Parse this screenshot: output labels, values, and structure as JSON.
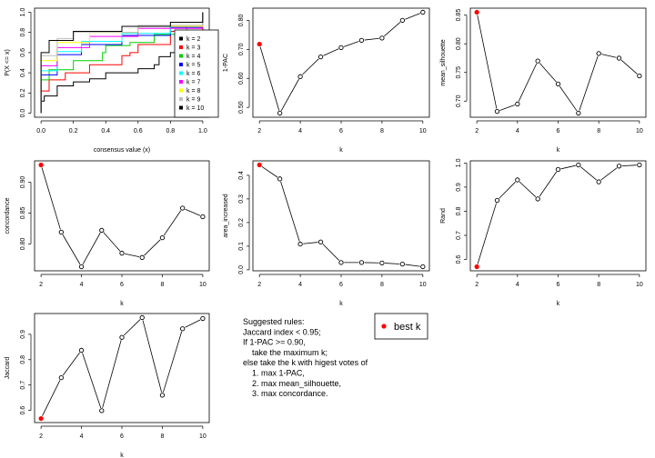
{
  "colors": {
    "best": "#ff0000",
    "line": "#000000"
  },
  "chart_data": [
    {
      "type": "line",
      "id": "ecdf",
      "xlabel": "consensus value (x)",
      "ylabel": "P(X <= x)",
      "xlim": [
        0,
        1
      ],
      "ylim": [
        0,
        1
      ],
      "xticks": [
        "0.0",
        "0.2",
        "0.4",
        "0.6",
        "0.8",
        "1.0"
      ],
      "yticks": [
        "0.0",
        "0.2",
        "0.4",
        "0.6",
        "0.8",
        "1.0"
      ],
      "legend_position": "right",
      "series": [
        {
          "name": "k = 2",
          "color": "#000000",
          "x": [
            0,
            0,
            0.02,
            0.1,
            0.2,
            0.3,
            0.4,
            0.6,
            0.7,
            0.73,
            0.8,
            0.99,
            1
          ],
          "y": [
            0,
            0.12,
            0.17,
            0.27,
            0.31,
            0.34,
            0.4,
            0.44,
            0.48,
            0.56,
            0.6,
            0.62,
            1
          ]
        },
        {
          "name": "k = 3",
          "color": "#ff0000",
          "x": [
            0,
            0,
            0.05,
            0.15,
            0.3,
            0.5,
            0.55,
            0.6,
            0.8,
            1,
            1
          ],
          "y": [
            0,
            0.22,
            0.33,
            0.4,
            0.48,
            0.57,
            0.6,
            0.68,
            0.81,
            0.97,
            1
          ]
        },
        {
          "name": "k = 4",
          "color": "#00cd00",
          "x": [
            0,
            0,
            0.05,
            0.2,
            0.38,
            0.4,
            0.55,
            0.7,
            0.9,
            1,
            1
          ],
          "y": [
            0,
            0.33,
            0.43,
            0.52,
            0.6,
            0.67,
            0.7,
            0.78,
            0.86,
            0.96,
            1
          ]
        },
        {
          "name": "k = 5",
          "color": "#0000ff",
          "x": [
            0,
            0,
            0.1,
            0.25,
            0.5,
            0.8,
            1,
            1
          ],
          "y": [
            0,
            0.38,
            0.58,
            0.68,
            0.77,
            0.85,
            0.97,
            1
          ]
        },
        {
          "name": "k = 6",
          "color": "#00ffff",
          "x": [
            0,
            0,
            0.1,
            0.25,
            0.5,
            0.8,
            1,
            1
          ],
          "y": [
            0,
            0.42,
            0.61,
            0.71,
            0.79,
            0.86,
            0.97,
            1
          ]
        },
        {
          "name": "k = 7",
          "color": "#ff00ff",
          "x": [
            0,
            0,
            0.1,
            0.3,
            0.6,
            1,
            1
          ],
          "y": [
            0,
            0.47,
            0.65,
            0.76,
            0.84,
            0.98,
            1
          ]
        },
        {
          "name": "k = 8",
          "color": "#ffff00",
          "x": [
            0,
            0,
            0.1,
            0.3,
            0.6,
            1,
            1
          ],
          "y": [
            0,
            0.52,
            0.7,
            0.8,
            0.86,
            0.98,
            1
          ]
        },
        {
          "name": "k = 9",
          "color": "#bebebe",
          "x": [
            0,
            0,
            0.1,
            0.2,
            0.6,
            1,
            1
          ],
          "y": [
            0,
            0.57,
            0.74,
            0.8,
            0.87,
            0.99,
            1
          ]
        },
        {
          "name": "k = 10",
          "color": "#000000",
          "x": [
            0,
            0,
            0.05,
            0.2,
            0.5,
            0.8,
            1
          ],
          "y": [
            0,
            0.6,
            0.72,
            0.81,
            0.86,
            0.9,
            1
          ]
        }
      ]
    },
    {
      "type": "line",
      "id": "pac",
      "xlabel": "k",
      "ylabel": "1-PAC",
      "x": [
        2,
        3,
        4,
        5,
        6,
        7,
        8,
        9,
        10
      ],
      "values": [
        0.718,
        0.48,
        0.606,
        0.674,
        0.706,
        0.731,
        0.739,
        0.8,
        0.828
      ],
      "best_k": 2,
      "xticks": [
        "2",
        "4",
        "6",
        "8",
        "10"
      ],
      "yticks": [
        "0.50",
        "0.60",
        "0.70",
        "0.80"
      ]
    },
    {
      "type": "line",
      "id": "silhouette",
      "xlabel": "k",
      "ylabel": "mean_silhouette",
      "x": [
        2,
        3,
        4,
        5,
        6,
        7,
        8,
        9,
        10
      ],
      "values": [
        0.855,
        0.682,
        0.695,
        0.77,
        0.73,
        0.679,
        0.783,
        0.775,
        0.744
      ],
      "best_k": 2,
      "xticks": [
        "2",
        "4",
        "6",
        "8",
        "10"
      ],
      "yticks": [
        "0.70",
        "0.75",
        "0.80",
        "0.85"
      ]
    },
    {
      "type": "line",
      "id": "concordance",
      "xlabel": "k",
      "ylabel": "concordance",
      "x": [
        2,
        3,
        4,
        5,
        6,
        7,
        8,
        9,
        10
      ],
      "values": [
        0.928,
        0.819,
        0.763,
        0.822,
        0.785,
        0.778,
        0.81,
        0.858,
        0.844
      ],
      "best_k": 2,
      "xticks": [
        "2",
        "4",
        "6",
        "8",
        "10"
      ],
      "yticks": [
        "0.80",
        "0.85",
        "0.90"
      ]
    },
    {
      "type": "line",
      "id": "area",
      "xlabel": "k",
      "ylabel": "area_increased",
      "x": [
        2,
        3,
        4,
        5,
        6,
        7,
        8,
        9,
        10
      ],
      "values": [
        0.444,
        0.385,
        0.109,
        0.118,
        0.031,
        0.031,
        0.029,
        0.024,
        0.013
      ],
      "best_k": 2,
      "xticks": [
        "2",
        "4",
        "6",
        "8",
        "10"
      ],
      "yticks": [
        "0.0",
        "0.1",
        "0.2",
        "0.3",
        "0.4"
      ]
    },
    {
      "type": "line",
      "id": "rand",
      "xlabel": "k",
      "ylabel": "Rand",
      "x": [
        2,
        3,
        4,
        5,
        6,
        7,
        8,
        9,
        10
      ],
      "values": [
        0.57,
        0.845,
        0.93,
        0.851,
        0.973,
        0.992,
        0.922,
        0.987,
        0.992
      ],
      "best_k": 2,
      "xticks": [
        "2",
        "4",
        "6",
        "8",
        "10"
      ],
      "yticks": [
        "0.6",
        "0.7",
        "0.8",
        "0.9",
        "1.0"
      ]
    },
    {
      "type": "line",
      "id": "jaccard",
      "xlabel": "k",
      "ylabel": "Jaccard",
      "x": [
        2,
        3,
        4,
        5,
        6,
        7,
        8,
        9,
        10
      ],
      "values": [
        0.568,
        0.729,
        0.837,
        0.599,
        0.888,
        0.966,
        0.66,
        0.922,
        0.962
      ],
      "best_k": 2,
      "xticks": [
        "2",
        "4",
        "6",
        "8",
        "10"
      ],
      "yticks": [
        "0.6",
        "0.7",
        "0.8",
        "0.9"
      ]
    }
  ],
  "rules": {
    "lines": [
      "Suggested rules:",
      "Jaccard index < 0.95;",
      "If 1-PAC >= 0.90,",
      "  take the maximum k;",
      "else take the k with higest votes of",
      "  1. max 1-PAC,",
      "  2. max mean_silhouette,",
      "  3. max concordance."
    ]
  },
  "legend": {
    "best_label": "best k"
  }
}
